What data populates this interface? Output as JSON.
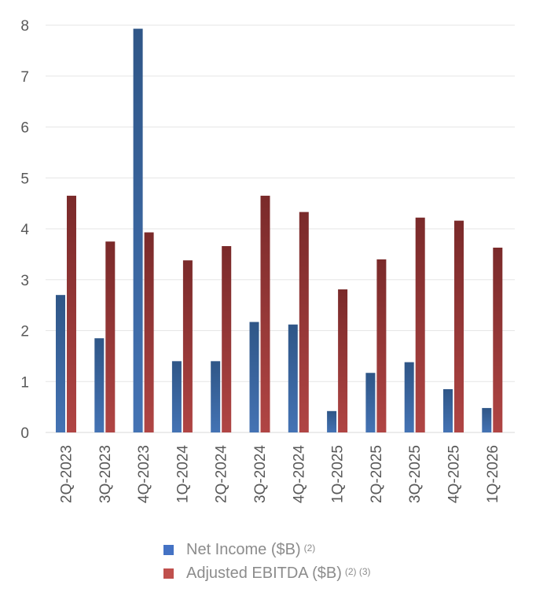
{
  "chart_data": {
    "type": "bar",
    "categories": [
      "2Q-2023",
      "3Q-2023",
      "4Q-2023",
      "1Q-2024",
      "2Q-2024",
      "3Q-2024",
      "4Q-2024",
      "1Q-2025",
      "2Q-2025",
      "3Q-2025",
      "4Q-2025",
      "1Q-2026"
    ],
    "series": [
      {
        "name": "Net Income ($B)",
        "sup": "(2)",
        "color": "#3a66a0",
        "values": [
          2.7,
          1.85,
          7.93,
          1.4,
          1.4,
          2.17,
          2.12,
          0.42,
          1.17,
          1.38,
          0.85,
          0.48
        ]
      },
      {
        "name": "Adjusted EBITDA ($B)",
        "sup": "(2) (3)",
        "color": "#a33b3a",
        "values": [
          4.65,
          3.75,
          3.93,
          3.38,
          3.66,
          4.65,
          4.33,
          2.81,
          3.4,
          4.22,
          4.16,
          3.63
        ]
      }
    ],
    "yticks": [
      0,
      1,
      2,
      3,
      4,
      5,
      6,
      7,
      8
    ],
    "ylim": [
      0,
      8
    ],
    "grid": true,
    "legend_position": "bottom"
  }
}
